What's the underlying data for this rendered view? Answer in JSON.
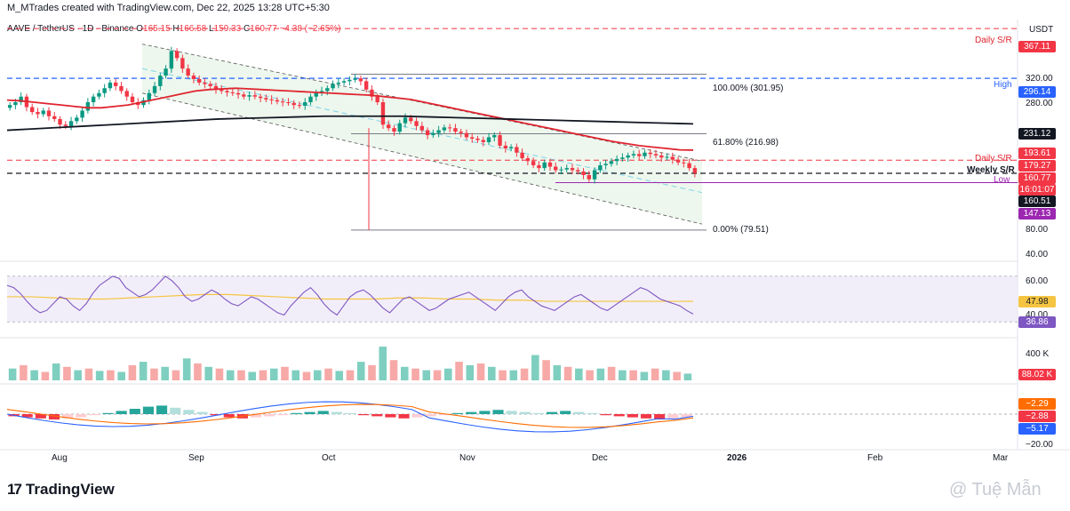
{
  "header": "M_MTrades created with TradingView.com, Dec 22, 2025 13:28 UTC+5:30",
  "legend": {
    "symbol": "AAVE / TetherUS · 1D · Binance",
    "o_label": "O",
    "o": "165.15",
    "h_label": "H",
    "h": "166.58",
    "l_label": "L",
    "l": "159.33",
    "c_label": "C",
    "c": "160.77",
    "change": "−4.38 (−2.65%)"
  },
  "currency": "USDT",
  "colors": {
    "up": "#089981",
    "down": "#f23645",
    "ema_red": "#e0242f",
    "ema_black": "#131722",
    "channel_fill": "#e8f5e9",
    "blue_level": "#2962ff",
    "purple": "#9c27b0",
    "rsi_line": "#7e57c2",
    "rsi_ma": "#f5c542",
    "macd_line": "#2962ff",
    "signal": "#ff6d00"
  },
  "brand": "TradingView",
  "watermark": "@ Tuệ Mẫn",
  "chart_data": [
    {
      "type": "candlestick",
      "title": "AAVE / TetherUS · 1D · Binance",
      "ylabel": "USDT",
      "x_ticks": [
        "Aug",
        "Sep",
        "Oct",
        "Nov",
        "Dec",
        "2026",
        "Feb",
        "Mar"
      ],
      "y_ticks": [
        "320.00",
        "280.00",
        "80.00",
        "40.00"
      ],
      "ylim": [
        40,
        380
      ],
      "ohlc_last": {
        "open": 165.15,
        "high": 166.58,
        "low": 159.33,
        "close": 160.77
      },
      "close_approx": [
        258,
        262,
        270,
        255,
        248,
        245,
        250,
        242,
        238,
        230,
        228,
        235,
        240,
        250,
        262,
        270,
        275,
        282,
        290,
        285,
        278,
        270,
        262,
        258,
        265,
        275,
        285,
        300,
        310,
        335,
        325,
        310,
        300,
        295,
        290,
        288,
        285,
        280,
        278,
        276,
        275,
        273,
        270,
        272,
        270,
        268,
        266,
        265,
        263,
        262,
        261,
        258,
        257,
        262,
        270,
        275,
        278,
        282,
        288,
        290,
        292,
        294,
        296,
        292,
        280,
        270,
        262,
        230,
        225,
        220,
        232,
        240,
        235,
        228,
        222,
        215,
        218,
        222,
        226,
        225,
        220,
        218,
        212,
        210,
        208,
        205,
        212,
        215,
        200,
        196,
        198,
        190,
        182,
        178,
        172,
        168,
        176,
        170,
        165,
        166,
        168,
        165,
        163,
        158,
        152,
        165,
        172,
        174,
        178,
        181,
        183,
        186,
        188,
        185,
        190,
        188,
        186,
        183,
        184,
        180,
        176,
        175,
        168,
        160.77
      ],
      "ema_red_approx": [
        265,
        264,
        262,
        260,
        258,
        256,
        254,
        254,
        256,
        258,
        262,
        266,
        270,
        274,
        278,
        280,
        281,
        282,
        281,
        280,
        279,
        278,
        277,
        276,
        275,
        274,
        273,
        272,
        270,
        268,
        266,
        262,
        258,
        254,
        250,
        246,
        242,
        238,
        234,
        230,
        226,
        222,
        218,
        214,
        210,
        206,
        203,
        200,
        198,
        196,
        194,
        193.61
      ],
      "ema_black_approx": [
        222,
        224,
        226,
        228,
        230,
        232,
        234,
        236,
        238,
        239,
        240,
        241,
        242,
        242,
        242,
        242,
        241,
        240,
        239,
        238,
        237,
        236,
        235,
        234,
        233,
        232,
        231.12
      ],
      "channel": {
        "upper_start": 345,
        "upper_end": 178,
        "lower_start": 275,
        "lower_end": 88
      },
      "levels": [
        {
          "label": "Daily S/R",
          "value": 367.11,
          "style": "dashed-red"
        },
        {
          "label": "100.00% (301.95)",
          "value": 301.95,
          "style": "fib"
        },
        {
          "label": "High",
          "value": 296.14,
          "style": "dashed-blue"
        },
        {
          "label": "61.80% (216.98)",
          "value": 216.98,
          "style": "fib"
        },
        {
          "label": "Daily S/R",
          "value": 179.27,
          "style": "dashed-red"
        },
        {
          "label": "Weekly S/R",
          "value": 160.51,
          "style": "dashed-black"
        },
        {
          "label": "Low",
          "value": 147.13,
          "style": "solid-purple"
        },
        {
          "label": "0.00% (79.51)",
          "value": 79.51,
          "style": "fib"
        }
      ],
      "price_badges": [
        {
          "text": "367.11",
          "color": "#f23645"
        },
        {
          "text": "296.14",
          "color": "#2962ff"
        },
        {
          "text": "231.12",
          "color": "#131722"
        },
        {
          "text": "193.61",
          "color": "#f23645"
        },
        {
          "text": "179.27",
          "color": "#f23645"
        },
        {
          "text": "160.77",
          "color": "#f23645"
        },
        {
          "text": "16:01:07",
          "color": "#f23645"
        },
        {
          "text": "160.51",
          "color": "#131722"
        },
        {
          "text": "147.13",
          "color": "#9c27b0"
        }
      ]
    },
    {
      "type": "line",
      "title": "RSI",
      "y_ticks": [
        "60.00",
        "40.00"
      ],
      "ylim": [
        20,
        80
      ],
      "series": [
        {
          "values": [
            62,
            60,
            55,
            48,
            42,
            38,
            40,
            46,
            52,
            50,
            44,
            40,
            46,
            55,
            62,
            66,
            70,
            68,
            60,
            56,
            52,
            54,
            58,
            64,
            70,
            66,
            60,
            52,
            48,
            50,
            54,
            58,
            55,
            50,
            46,
            44,
            48,
            52,
            50,
            46,
            42,
            38,
            36,
            44,
            50,
            56,
            60,
            54,
            46,
            40,
            36,
            44,
            52,
            56,
            58,
            54,
            48,
            42,
            38,
            44,
            50,
            52,
            48,
            44,
            40,
            42,
            46,
            50,
            52,
            54,
            56,
            52,
            48,
            44,
            40,
            46,
            52,
            56,
            58,
            52,
            48,
            44,
            42,
            40,
            44,
            48,
            52,
            54,
            50,
            46,
            42,
            40,
            44,
            48,
            52,
            56,
            60,
            58,
            54,
            50,
            48,
            46,
            44,
            40,
            36.86
          ]
        },
        {
          "values": [
            52,
            52,
            51,
            50,
            50,
            51,
            52,
            53,
            54,
            54,
            53,
            52,
            51,
            50,
            50,
            50,
            51,
            51,
            50,
            50,
            49,
            49,
            48,
            48,
            48,
            48,
            48,
            48,
            47.98
          ]
        }
      ],
      "badges": [
        {
          "text": "47.98",
          "color": "#f5c542"
        },
        {
          "text": "36.86",
          "color": "#7e57c2"
        }
      ]
    },
    {
      "type": "bar",
      "title": "Volume",
      "y_ticks": [
        "400 K"
      ],
      "badges": [
        {
          "text": "88.02 K",
          "color": "#f23645"
        }
      ],
      "values_relative": [
        0.35,
        0.45,
        0.3,
        0.25,
        0.5,
        0.4,
        0.3,
        0.35,
        0.28,
        0.3,
        0.25,
        0.45,
        0.55,
        0.35,
        0.4,
        0.3,
        0.65,
        0.5,
        0.4,
        0.35,
        0.3,
        0.3,
        0.25,
        0.3,
        0.35,
        0.4,
        0.3,
        0.25,
        0.3,
        0.35,
        0.28,
        0.3,
        0.55,
        0.45,
        1.0,
        0.6,
        0.4,
        0.35,
        0.3,
        0.3,
        0.35,
        0.55,
        0.45,
        0.5,
        0.4,
        0.3,
        0.3,
        0.35,
        0.75,
        0.6,
        0.45,
        0.4,
        0.35,
        0.3,
        0.35,
        0.4,
        0.3,
        0.3,
        0.25,
        0.35,
        0.3,
        0.25,
        0.2
      ]
    },
    {
      "type": "bar",
      "title": "MACD",
      "y_ticks": [
        "−20.00"
      ],
      "badges": [
        {
          "text": "−2.29",
          "color": "#ff6d00"
        },
        {
          "text": "−2.88",
          "color": "#f23645"
        },
        {
          "text": "−5.17",
          "color": "#2962ff"
        }
      ],
      "histogram_relative": [
        -0.2,
        -0.3,
        -0.4,
        -0.5,
        -0.4,
        -0.3,
        -0.1,
        0.1,
        0.3,
        0.5,
        0.7,
        0.8,
        0.6,
        0.4,
        0.2,
        -0.1,
        -0.3,
        -0.4,
        -0.3,
        -0.2,
        -0.1,
        0.1,
        0.2,
        0.3,
        0.2,
        0.1,
        -0.1,
        -0.2,
        -0.3,
        -0.4,
        -0.3,
        -0.2,
        -0.1,
        0.1,
        0.2,
        0.3,
        0.4,
        0.3,
        0.2,
        0.1,
        0.2,
        0.3,
        0.2,
        0.1,
        -0.1,
        -0.2,
        -0.3,
        -0.4,
        -0.5,
        -0.4,
        -0.3
      ]
    }
  ]
}
